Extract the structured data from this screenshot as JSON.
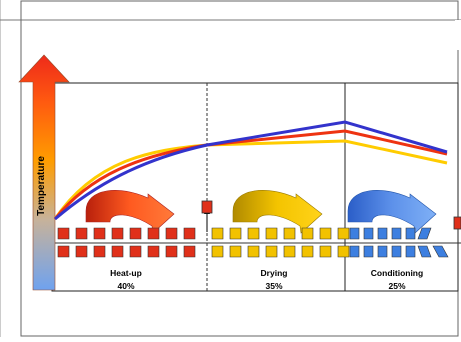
{
  "diagram": {
    "y_axis_label": "Temperature",
    "phases": [
      {
        "name": "Heat-up",
        "share": "40%"
      },
      {
        "name": "Drying",
        "share": "35%"
      },
      {
        "name": "Conditioning",
        "share": "25%"
      }
    ]
  },
  "colors": {
    "curve_blue": "#3333cc",
    "curve_red": "#ee3311",
    "curve_yellow": "#ffcc00",
    "heat_block": "#e0301a",
    "dry_block": "#f2c200",
    "cond_block": "#3d7fe0"
  }
}
